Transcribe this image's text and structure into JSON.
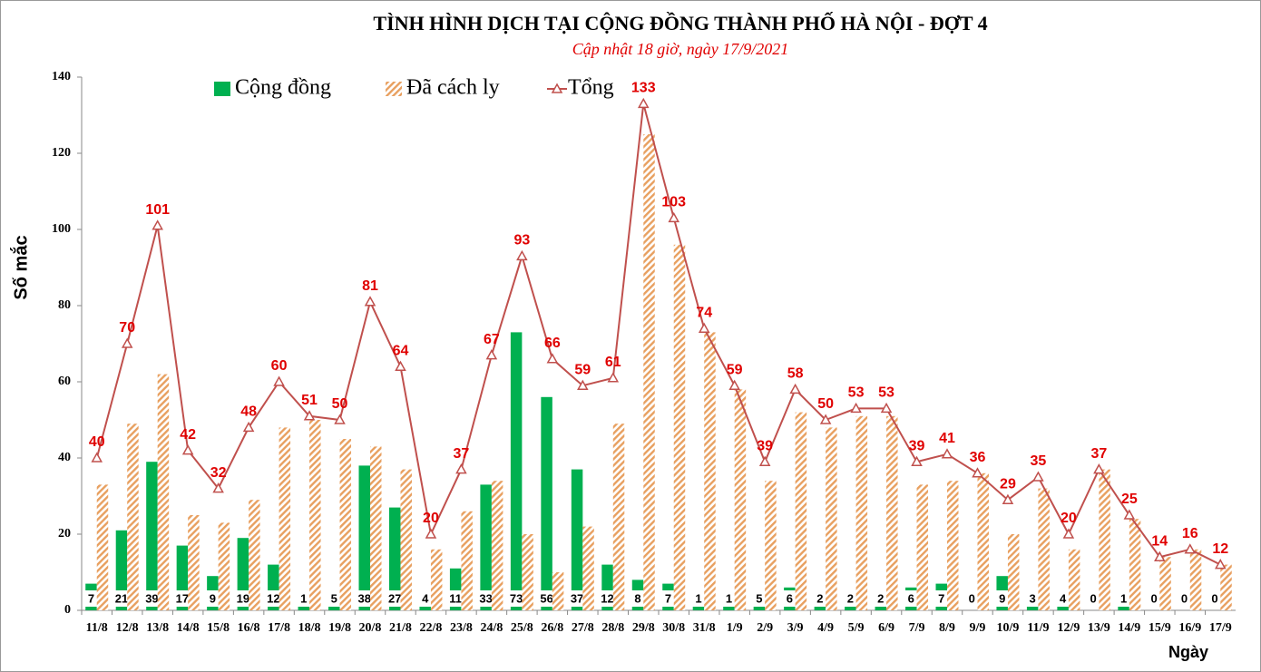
{
  "chart_data": {
    "type": "bar",
    "title": "TÌNH HÌNH DỊCH TẠI CỘNG ĐỒNG THÀNH PHỐ HÀ NỘI - ĐỢT 4",
    "subtitle": "Cập nhật 18 giờ, ngày 17/9/2021",
    "y_label": "Số mắc",
    "x_label": "Ngày",
    "categories": [
      "11/8",
      "12/8",
      "13/8",
      "14/8",
      "15/8",
      "16/8",
      "17/8",
      "18/8",
      "19/8",
      "20/8",
      "21/8",
      "22/8",
      "23/8",
      "24/8",
      "25/8",
      "26/8",
      "27/8",
      "28/8",
      "29/8",
      "30/8",
      "31/8",
      "1/9",
      "2/9",
      "3/9",
      "4/9",
      "5/9",
      "6/9",
      "7/9",
      "8/9",
      "9/9",
      "10/9",
      "11/9",
      "12/9",
      "13/9",
      "14/9",
      "15/9",
      "16/9",
      "17/9"
    ],
    "series": [
      {
        "name": "Cộng đồng",
        "color": "#00b050",
        "labels": "bottom",
        "values": [
          7,
          21,
          39,
          17,
          9,
          19,
          12,
          1,
          5,
          38,
          27,
          4,
          11,
          33,
          73,
          56,
          37,
          12,
          8,
          7,
          1,
          1,
          5,
          6,
          2,
          2,
          2,
          6,
          7,
          0,
          9,
          3,
          4,
          0,
          1,
          0,
          0,
          0
        ]
      },
      {
        "name": "Đã cách ly",
        "color": "#e8a060",
        "pattern": "hatch",
        "values": [
          33,
          49,
          62,
          25,
          23,
          29,
          48,
          50,
          45,
          43,
          37,
          16,
          26,
          34,
          20,
          10,
          22,
          49,
          125,
          96,
          73,
          58,
          34,
          52,
          48,
          51,
          51,
          33,
          34,
          36,
          20,
          32,
          16,
          37,
          24,
          14,
          16,
          12
        ]
      },
      {
        "name": "Tổng",
        "color": "#c0504d",
        "type": "line",
        "labels": "above",
        "label_color": "#e00000",
        "values": [
          40,
          70,
          101,
          42,
          32,
          48,
          60,
          51,
          50,
          81,
          64,
          20,
          37,
          67,
          93,
          66,
          59,
          61,
          133,
          103,
          74,
          59,
          39,
          58,
          50,
          53,
          53,
          39,
          41,
          36,
          29,
          35,
          20,
          37,
          25,
          14,
          16,
          12
        ]
      }
    ],
    "ylim": [
      0,
      140
    ],
    "yticks": [
      0,
      20,
      40,
      60,
      80,
      100,
      120,
      140
    ],
    "grid": false
  }
}
